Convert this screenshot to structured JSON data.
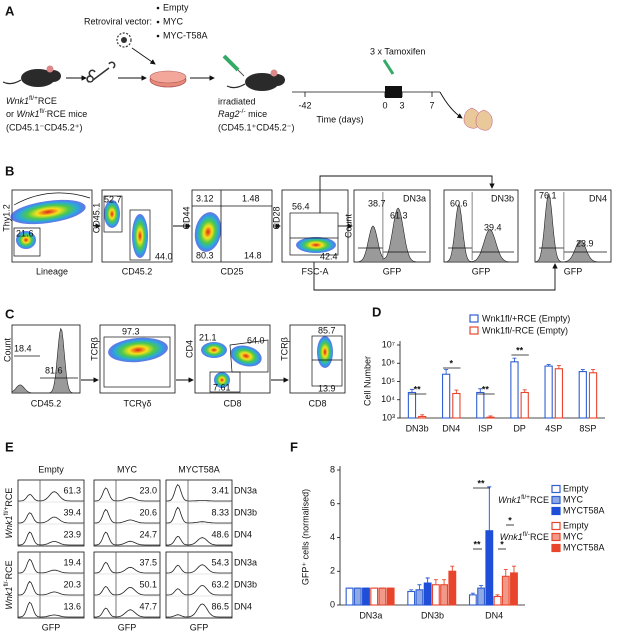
{
  "panel_labels": [
    "A",
    "B",
    "C",
    "D",
    "E",
    "F"
  ],
  "panel_a": {
    "vector_title": "Retroviral vector:",
    "vectors": [
      "Empty",
      "MYC",
      "MYC-T58A"
    ],
    "donor": {
      "line1": {
        "gene": "Wnk1",
        "allele": "fl/+",
        "rest": "RCE"
      },
      "or": "or ",
      "line2": {
        "gene": "Wnk1",
        "allele": "fl/-",
        "rest": "RCE mice"
      },
      "markers": "(CD45.1⁻CD45.2⁺)"
    },
    "recipient": {
      "status": "irradiated",
      "line": {
        "gene": "Rag2",
        "allele": "-/-",
        "rest": " mice"
      },
      "markers": "(CD45.1⁺CD45.2⁻)"
    },
    "treatment": "3 x Tamoxifen",
    "time_ticks": [
      -42,
      0,
      3,
      7
    ],
    "time_label": "Time (days)"
  },
  "panel_b": {
    "plots": [
      {
        "x": "Lineage",
        "y": "Thy1.2",
        "gates": [
          "21.6"
        ]
      },
      {
        "x": "CD45.2",
        "y": "CD45.1",
        "gates": [
          "52.7",
          "44.0"
        ]
      },
      {
        "x": "CD25",
        "y": "CD44",
        "gates": [
          "3.12",
          "1.48",
          "80.3",
          "14.8"
        ]
      },
      {
        "x": "FSC-A",
        "y": "CD28",
        "gates": [
          "56.4",
          "42.4"
        ]
      }
    ],
    "count": "Count",
    "histograms": [
      {
        "title": "DN3a",
        "x": "GFP",
        "gates": [
          "38.7",
          "61.3"
        ]
      },
      {
        "title": "DN3b",
        "x": "GFP",
        "gates": [
          "60.6",
          "39.4"
        ]
      },
      {
        "title": "DN4",
        "x": "GFP",
        "gates": [
          "76.1",
          "23.9"
        ]
      }
    ]
  },
  "panel_c": {
    "histogram": {
      "y": "Count",
      "x": "CD45.2",
      "gates": [
        "18.4",
        "81.6"
      ]
    },
    "plots": [
      {
        "x": "TCRγδ",
        "y": "TCRβ",
        "gates": [
          "97.3"
        ]
      },
      {
        "x": "CD8",
        "y": "CD4",
        "gates": [
          "21.1",
          "64.0",
          "7.61"
        ]
      },
      {
        "x": "CD8",
        "y": "TCRβ",
        "gates": [
          "85.7",
          "13.9"
        ]
      }
    ]
  },
  "panel_e": {
    "columns": [
      "Empty",
      "MYC",
      "MYCT58A"
    ],
    "populations": [
      "DN3a",
      "DN3b",
      "DN4"
    ],
    "genotypes": [
      {
        "gene": "Wnk1",
        "allele": "fl/+",
        "rest": "RCE"
      },
      {
        "gene": "Wnk1",
        "allele": "fl/-",
        "rest": "RCE"
      }
    ],
    "values": [
      [
        [
          "61.3",
          "23.0",
          "3.41"
        ],
        [
          "39.4",
          "20.6",
          "8.33"
        ],
        [
          "23.9",
          "24.7",
          "48.6"
        ]
      ],
      [
        [
          "19.4",
          "37.5",
          "54.3"
        ],
        [
          "20.3",
          "50.1",
          "63.2"
        ],
        [
          "13.6",
          "47.7",
          "86.5"
        ]
      ]
    ],
    "x_label": "GFP"
  },
  "chart_data": [
    {
      "type": "bar",
      "y_label": "Cell Number",
      "log": true,
      "categories": [
        "DN3b",
        "DN4",
        "ISP",
        "DP",
        "4SP",
        "8SP"
      ],
      "ylim": [
        1000,
        10000000
      ],
      "yticks": [
        {
          "value": 1000,
          "label": "10³"
        },
        {
          "value": 10000,
          "label": "10⁴"
        },
        {
          "value": 100000,
          "label": "10⁵"
        },
        {
          "value": 1000000,
          "label": "10⁶"
        },
        {
          "value": 10000000,
          "label": "10⁷"
        }
      ],
      "series": [
        {
          "name": "Wnk1fl/+RCE (Empty)",
          "color": "#2f5fd0",
          "fill": "#ffffff",
          "values": [
            25000,
            250000,
            25000,
            1200000,
            700000,
            350000
          ],
          "errors": [
            12000,
            200000,
            15000,
            700000,
            150000,
            100000
          ]
        },
        {
          "name": "Wnk1fl/-RCE (Empty)",
          "color": "#e8452c",
          "fill": "#ffffff",
          "values": [
            1200,
            22000,
            1100,
            25000,
            500000,
            300000
          ],
          "errors": [
            300,
            12000,
            200,
            10000,
            250000,
            150000
          ]
        }
      ],
      "annotations": [
        "**",
        "*",
        "**",
        "**"
      ]
    },
    {
      "type": "bar",
      "y_label": "GFP⁺ cells (normalised)",
      "categories": [
        "DN3a",
        "DN3b",
        "DN4"
      ],
      "ylim": [
        0,
        8
      ],
      "yticks": [
        0,
        2,
        4,
        6,
        8
      ],
      "legend_groups": [
        {
          "gene": "Wnk1",
          "allele": "fl/+",
          "rest": "RCE"
        },
        {
          "gene": "Wnk1",
          "allele": "fl/-",
          "rest": "RCE"
        }
      ],
      "series": [
        {
          "name": "Empty",
          "color": "#2f5fd0",
          "fill": "#ffffff",
          "values": [
            1,
            0.8,
            0.6
          ],
          "errors": [
            0,
            0.1,
            0.1
          ]
        },
        {
          "name": "MYC",
          "color": "#2f5fd0",
          "fill": "#8fa8e6",
          "values": [
            1,
            0.9,
            1.0
          ],
          "errors": [
            0,
            0.3,
            0.15
          ]
        },
        {
          "name": "MYCT58A",
          "color": "#1f4fd8",
          "fill": "#1f4fd8",
          "values": [
            1,
            1.3,
            4.4
          ],
          "errors": [
            0,
            0.3,
            2.6
          ]
        },
        {
          "name": "Empty",
          "color": "#e8452c",
          "fill": "#ffffff",
          "values": [
            1,
            1.2,
            0.5
          ],
          "errors": [
            0,
            0.3,
            0.1
          ]
        },
        {
          "name": "MYC",
          "color": "#e8452c",
          "fill": "#f29a8a",
          "values": [
            1,
            1.2,
            1.7
          ],
          "errors": [
            0,
            0.3,
            0.4
          ]
        },
        {
          "name": "MYCT58A",
          "color": "#e8452c",
          "fill": "#e8452c",
          "values": [
            1,
            2.0,
            1.9
          ],
          "errors": [
            0,
            0.3,
            0.4
          ]
        }
      ],
      "annotations": [
        "**",
        "**",
        "*",
        "*"
      ]
    }
  ]
}
